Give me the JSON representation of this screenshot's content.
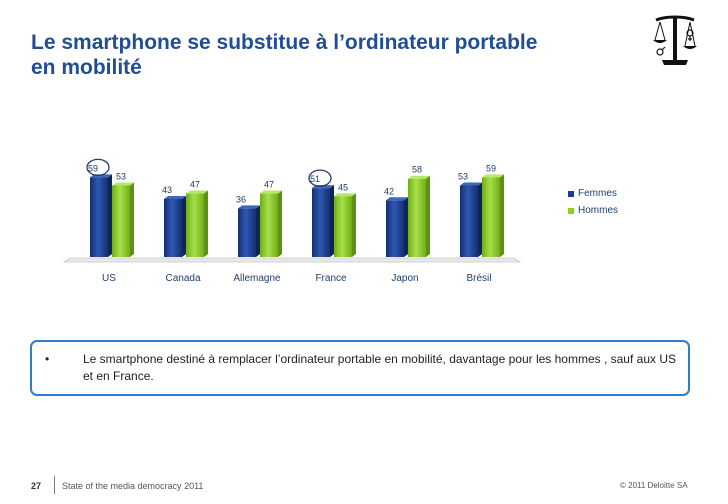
{
  "slide": {
    "title_line1": "Le smartphone se substitue à l’ordinateur portable",
    "title_line2": "en mobilité",
    "bullet_symbol": "•",
    "bullet_text": "Le smartphone destiné à remplacer l’ordinateur portable en mobilité, davantage pour les hommes , sauf aux US et en France.",
    "logo_icon": "balance-scale-gender-icon"
  },
  "footer": {
    "page_number": "27",
    "left_text": "State of the media democracy 2011",
    "right_text": "© 2011 Deloitte SA"
  },
  "colors": {
    "title": "#1f4e96",
    "femmes": "#1b3f8f",
    "hommes": "#8ccd2a",
    "callout_border": "#2a7fd1",
    "highlight_circle": "#1f3e6a"
  },
  "chart_data": {
    "type": "bar",
    "categories": [
      "US",
      "Canada",
      "Allemagne",
      "France",
      "Japon",
      "Brésil"
    ],
    "series": [
      {
        "name": "Femmes",
        "values": [
          59,
          43,
          36,
          51,
          42,
          53
        ]
      },
      {
        "name": "Hommes",
        "values": [
          53,
          47,
          47,
          45,
          58,
          59
        ]
      }
    ],
    "highlighted": [
      "US-Femmes",
      "France-Femmes"
    ],
    "legend_position": "right",
    "grid": false,
    "title": "",
    "xlabel": "",
    "ylabel": ""
  }
}
